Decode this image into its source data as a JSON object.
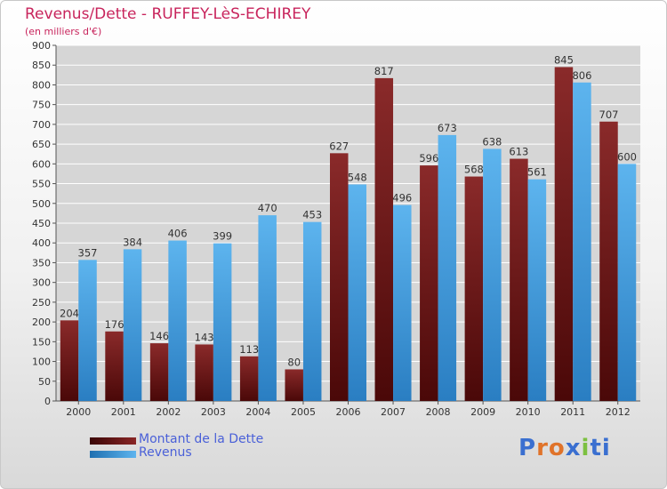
{
  "title": "Revenus/Dette - RUFFEY-LèS-ECHIREY",
  "subtitle": "(en milliers d'€)",
  "chart_data": {
    "type": "bar",
    "categories": [
      "2000",
      "2001",
      "2002",
      "2003",
      "2004",
      "2005",
      "2006",
      "2007",
      "2008",
      "2009",
      "2010",
      "2011",
      "2012"
    ],
    "series": [
      {
        "name": "Montant de la Dette",
        "color": "#7a1a1a",
        "values": [
          204,
          176,
          146,
          143,
          113,
          80,
          627,
          817,
          596,
          568,
          613,
          845,
          707
        ]
      },
      {
        "name": "Revenus",
        "color": "#4ba3e3",
        "values": [
          357,
          384,
          406,
          399,
          470,
          453,
          548,
          496,
          673,
          638,
          561,
          806,
          600
        ]
      }
    ],
    "ylim": [
      0,
      900
    ],
    "yticks": [
      0,
      50,
      100,
      150,
      200,
      250,
      300,
      350,
      400,
      450,
      500,
      550,
      600,
      650,
      700,
      750,
      800,
      850,
      900
    ],
    "grid": true,
    "legend_position": "bottom-left"
  },
  "logo": "Proxiti",
  "colors": {
    "title": "#c8245c",
    "legend_text": "#4a60d8",
    "grid": "#ffffff",
    "plot_bg": "#d6d6d6"
  }
}
